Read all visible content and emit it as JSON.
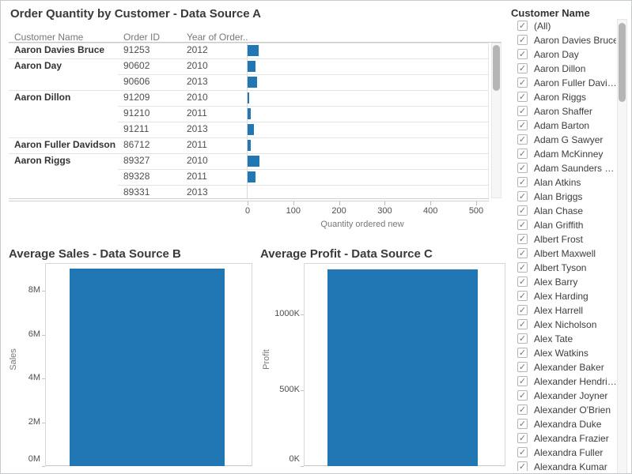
{
  "chart_data": [
    {
      "type": "table",
      "title": "Order Quantity by Customer - Data Source A",
      "columns": [
        "Customer Name",
        "Order ID",
        "Year of Order.."
      ],
      "rows": [
        {
          "customer": "Aaron Davies Bruce",
          "order_id": "91253",
          "year": "2012",
          "quantity": 25,
          "group_start": true
        },
        {
          "customer": "Aaron Day",
          "order_id": "90602",
          "year": "2010",
          "quantity": 17,
          "group_start": true
        },
        {
          "customer": "",
          "order_id": "90606",
          "year": "2013",
          "quantity": 21,
          "group_start": false
        },
        {
          "customer": "Aaron Dillon",
          "order_id": "91209",
          "year": "2010",
          "quantity": 3,
          "group_start": true
        },
        {
          "customer": "",
          "order_id": "91210",
          "year": "2011",
          "quantity": 7,
          "group_start": false
        },
        {
          "customer": "",
          "order_id": "91211",
          "year": "2013",
          "quantity": 13,
          "group_start": false
        },
        {
          "customer": "Aaron Fuller Davidson",
          "order_id": "86712",
          "year": "2011",
          "quantity": 7,
          "group_start": true
        },
        {
          "customer": "Aaron Riggs",
          "order_id": "89327",
          "year": "2010",
          "quantity": 26,
          "group_start": true
        },
        {
          "customer": "",
          "order_id": "89328",
          "year": "2011",
          "quantity": 18,
          "group_start": false
        },
        {
          "customer": "",
          "order_id": "89331",
          "year": "2013",
          "quantity": 0,
          "group_start": false
        }
      ],
      "xlabel": "Quantity ordered new",
      "x_ticks": [
        0,
        100,
        200,
        300,
        400,
        500
      ],
      "xlim": [
        0,
        527
      ],
      "bar_color": "#2077b4"
    },
    {
      "type": "bar",
      "title": "Average Sales - Data Source B",
      "ylabel": "Sales",
      "y_tick_labels": [
        "0M",
        "2M",
        "4M",
        "6M",
        "8M"
      ],
      "y_tick_values": [
        0,
        2000000,
        4000000,
        6000000,
        8000000
      ],
      "values": [
        9000000
      ],
      "ylim": [
        0,
        9260000
      ],
      "bar_color": "#2077b4"
    },
    {
      "type": "bar",
      "title": "Average Profit - Data Source C",
      "ylabel": "Profit",
      "y_tick_labels": [
        "0K",
        "500K",
        "1000K"
      ],
      "y_tick_values": [
        0,
        500000,
        1000000
      ],
      "values": [
        1300000
      ],
      "ylim": [
        0,
        1340000
      ],
      "bar_color": "#2077b4"
    }
  ],
  "filter": {
    "title": "Customer Name",
    "all_checked": true,
    "items": [
      "(All)",
      "Aaron Davies Bruce",
      "Aaron Day",
      "Aaron Dillon",
      "Aaron Fuller Davi…",
      "Aaron Riggs",
      "Aaron Shaffer",
      "Adam Barton",
      "Adam G Sawyer",
      "Adam McKinney",
      "Adam Saunders …",
      "Alan Atkins",
      "Alan Briggs",
      "Alan Chase",
      "Alan Griffith",
      "Albert Frost",
      "Albert Maxwell",
      "Albert Tyson",
      "Alex Barry",
      "Alex Harding",
      "Alex Harrell",
      "Alex Nicholson",
      "Alex Tate",
      "Alex Watkins",
      "Alexander Baker",
      "Alexander Hendri…",
      "Alexander Joyner",
      "Alexander O'Brien",
      "Alexandra Duke",
      "Alexandra Frazier",
      "Alexandra Fuller",
      "Alexandra Kumar"
    ]
  }
}
